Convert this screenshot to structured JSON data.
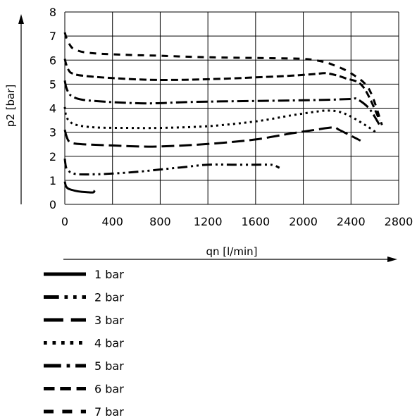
{
  "chart_data": {
    "type": "line",
    "xlabel": "qn [l/min]",
    "ylabel": "p2 [bar]",
    "xlim": [
      0,
      2800
    ],
    "ylim": [
      0,
      8
    ],
    "x_ticks": [
      "0",
      "400",
      "800",
      "1200",
      "1600",
      "2000",
      "2400",
      "2800"
    ],
    "y_ticks": [
      "0",
      "1",
      "2",
      "3",
      "4",
      "5",
      "6",
      "7",
      "8"
    ],
    "grid": true,
    "legend_position": "bottom-left",
    "series": [
      {
        "name": "1 bar",
        "style": "solid",
        "x": [
          0,
          10,
          30,
          60,
          100,
          150,
          200,
          240,
          250
        ],
        "y": [
          0.95,
          0.75,
          0.65,
          0.6,
          0.55,
          0.52,
          0.5,
          0.5,
          0.58
        ]
      },
      {
        "name": "2 bar",
        "style": "dash-dot-dot",
        "x": [
          0,
          10,
          30,
          60,
          120,
          250,
          400,
          600,
          800,
          1000,
          1200,
          1400,
          1600,
          1700,
          1750,
          1800
        ],
        "y": [
          1.9,
          1.55,
          1.4,
          1.3,
          1.25,
          1.25,
          1.28,
          1.35,
          1.45,
          1.55,
          1.65,
          1.65,
          1.65,
          1.65,
          1.63,
          1.52
        ]
      },
      {
        "name": "3 bar",
        "style": "long-dash",
        "x": [
          0,
          10,
          30,
          60,
          150,
          400,
          700,
          1000,
          1300,
          1600,
          1900,
          2100,
          2250,
          2300,
          2400,
          2480
        ],
        "y": [
          3.1,
          2.9,
          2.65,
          2.55,
          2.5,
          2.45,
          2.4,
          2.45,
          2.55,
          2.7,
          2.95,
          3.1,
          3.2,
          3.1,
          2.85,
          2.65
        ]
      },
      {
        "name": "4 bar",
        "style": "dotted",
        "x": [
          0,
          10,
          40,
          100,
          250,
          500,
          800,
          1200,
          1600,
          1900,
          2100,
          2200,
          2300,
          2400,
          2550,
          2620
        ],
        "y": [
          4.05,
          3.7,
          3.45,
          3.3,
          3.2,
          3.18,
          3.18,
          3.25,
          3.45,
          3.7,
          3.85,
          3.9,
          3.85,
          3.65,
          3.2,
          2.95
        ]
      },
      {
        "name": "5 bar",
        "style": "dash-dot",
        "x": [
          0,
          10,
          30,
          60,
          150,
          400,
          700,
          1000,
          1300,
          1600,
          1900,
          2200,
          2400,
          2450,
          2550,
          2640
        ],
        "y": [
          5.15,
          4.9,
          4.65,
          4.5,
          4.35,
          4.25,
          4.2,
          4.25,
          4.28,
          4.3,
          4.32,
          4.35,
          4.38,
          4.38,
          4.0,
          3.3
        ]
      },
      {
        "name": "6 bar",
        "style": "dashed",
        "x": [
          0,
          10,
          30,
          60,
          150,
          400,
          700,
          1000,
          1300,
          1600,
          1900,
          2100,
          2200,
          2350,
          2500,
          2640
        ],
        "y": [
          6.05,
          5.85,
          5.6,
          5.45,
          5.35,
          5.25,
          5.18,
          5.18,
          5.22,
          5.28,
          5.35,
          5.42,
          5.45,
          5.25,
          4.9,
          3.5
        ]
      },
      {
        "name": "7 bar",
        "style": "wide-dash",
        "x": [
          0,
          15,
          40,
          80,
          200,
          500,
          800,
          1100,
          1400,
          1700,
          2000,
          2150,
          2250,
          2400,
          2550,
          2660
        ],
        "y": [
          7.15,
          6.9,
          6.65,
          6.45,
          6.3,
          6.22,
          6.18,
          6.13,
          6.1,
          6.08,
          6.05,
          5.95,
          5.8,
          5.45,
          4.8,
          3.3
        ]
      }
    ]
  }
}
